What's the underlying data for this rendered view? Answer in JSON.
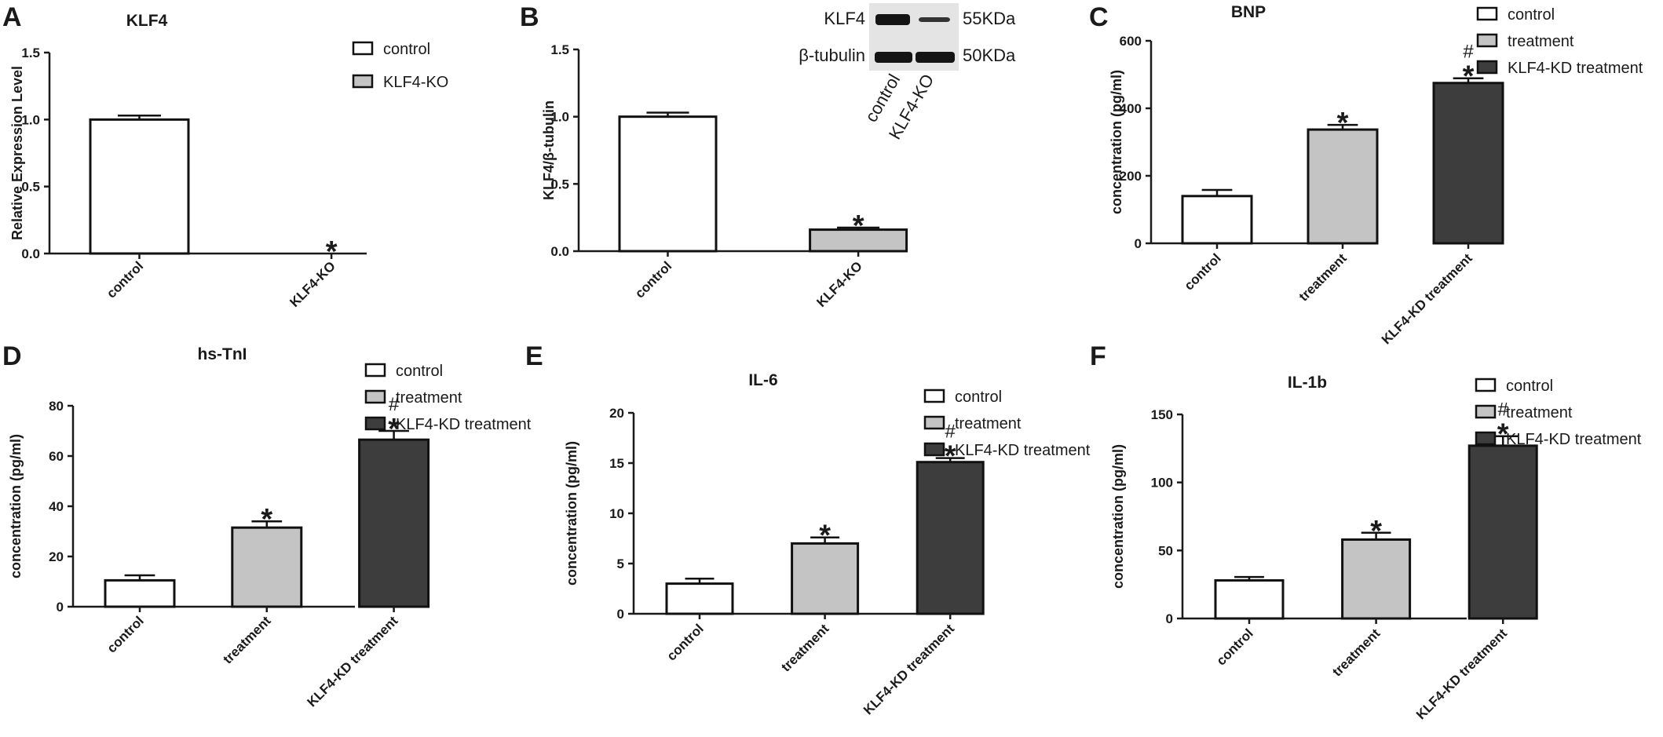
{
  "colors": {
    "control": "#ffffff",
    "treatment": "#c4c4c4",
    "kd": "#3d3d3d"
  },
  "western_blot": {
    "rows": [
      "KLF4",
      "β-tubulin"
    ],
    "sizes": [
      "55KDa",
      "50KDa"
    ],
    "lanes": [
      "control",
      "KLF4-KO"
    ]
  },
  "chart_data": [
    {
      "id": "A",
      "letter": "A",
      "type": "bar",
      "title": "KLF4",
      "ylabel": "Relative Expression Level",
      "ylim": [
        0,
        1.5
      ],
      "yticks": [
        "0.0",
        "0.5",
        "1.0",
        "1.5"
      ],
      "categories": [
        "control",
        "KLF4-KO"
      ],
      "values": [
        1.0,
        0.0
      ],
      "errors": [
        0.03,
        0.0
      ],
      "bar_colors": [
        "control",
        "treatment"
      ],
      "marks": [
        [],
        [
          "*"
        ]
      ],
      "legend": [
        "control",
        "KLF4-KO"
      ]
    },
    {
      "id": "B",
      "letter": "B",
      "type": "bar",
      "title": "",
      "ylabel": "KLF4/β-tubulin",
      "ylim": [
        0,
        1.5
      ],
      "yticks": [
        "0.0",
        "0.5",
        "1.0",
        "1.5"
      ],
      "categories": [
        "control",
        "KLF4-KO"
      ],
      "values": [
        1.0,
        0.16
      ],
      "errors": [
        0.03,
        0.015
      ],
      "bar_colors": [
        "control",
        "treatment"
      ],
      "marks": [
        [],
        [
          "*"
        ]
      ],
      "legend": []
    },
    {
      "id": "C",
      "letter": "C",
      "type": "bar",
      "title": "BNP",
      "ylabel": "concentration (pg/ml)",
      "ylim": [
        0,
        600
      ],
      "yticks": [
        "0",
        "200",
        "400",
        "600"
      ],
      "categories": [
        "control",
        "treatment",
        "KLF4-KD treatment"
      ],
      "values": [
        140,
        337,
        475
      ],
      "errors": [
        18,
        14,
        14
      ],
      "bar_colors": [
        "control",
        "treatment",
        "kd"
      ],
      "marks": [
        [],
        [
          "*"
        ],
        [
          "*",
          "#"
        ]
      ],
      "legend": [
        "control",
        "treatment",
        "KLF4-KD treatment"
      ]
    },
    {
      "id": "D",
      "letter": "D",
      "type": "bar",
      "title": "hs-TnI",
      "ylabel": "concentration (pg/ml)",
      "ylim": [
        0,
        80
      ],
      "yticks": [
        "0",
        "20",
        "40",
        "60",
        "80"
      ],
      "categories": [
        "control",
        "treatment",
        "KLF4-KD treatment"
      ],
      "values": [
        10.5,
        31.5,
        66.5
      ],
      "errors": [
        2,
        2.5,
        3.5
      ],
      "bar_colors": [
        "control",
        "treatment",
        "kd"
      ],
      "marks": [
        [],
        [
          "*"
        ],
        [
          "*",
          "#"
        ]
      ],
      "legend": [
        "control",
        "treatment",
        "KLF4-KD treatment"
      ]
    },
    {
      "id": "E",
      "letter": "E",
      "type": "bar",
      "title": "IL-6",
      "ylabel": "concentration (pg/ml)",
      "ylim": [
        0,
        20
      ],
      "yticks": [
        "0",
        "5",
        "10",
        "15",
        "20"
      ],
      "categories": [
        "control",
        "treatment",
        "KLF4-KD treatment"
      ],
      "values": [
        3.0,
        7.0,
        15.1
      ],
      "errors": [
        0.5,
        0.6,
        0.4
      ],
      "bar_colors": [
        "control",
        "treatment",
        "kd"
      ],
      "marks": [
        [],
        [
          "*"
        ],
        [
          "*",
          "#"
        ]
      ],
      "legend": [
        "control",
        "treatment",
        "KLF4-KD treatment"
      ]
    },
    {
      "id": "F",
      "letter": "F",
      "type": "bar",
      "title": "IL-1b",
      "ylabel": "concentration (pg/ml)",
      "ylim": [
        0,
        150
      ],
      "yticks": [
        "0",
        "50",
        "100",
        "150"
      ],
      "categories": [
        "control",
        "treatment",
        "KLF4-KD treatment"
      ],
      "values": [
        28,
        58,
        127
      ],
      "errors": [
        2.5,
        5,
        7
      ],
      "bar_colors": [
        "control",
        "treatment",
        "kd"
      ],
      "marks": [
        [],
        [
          "*"
        ],
        [
          "*",
          "#"
        ]
      ],
      "legend": [
        "control",
        "treatment",
        "KLF4-KD treatment"
      ]
    }
  ]
}
